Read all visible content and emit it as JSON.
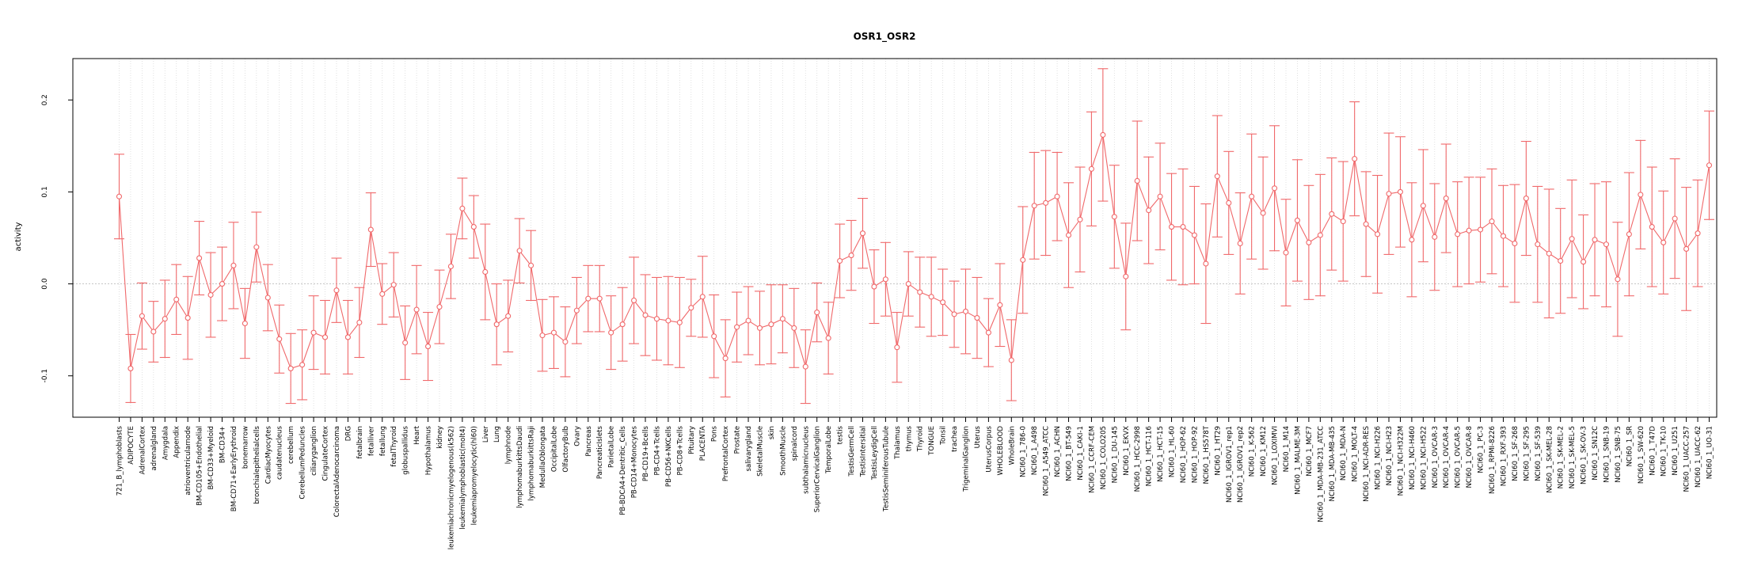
{
  "chart_data": {
    "type": "line",
    "title": "OSR1_OSR2",
    "xlabel": "",
    "ylabel": "activity",
    "ylim": [
      -0.145,
      0.245
    ],
    "yticks": [
      -0.1,
      0.0,
      0.1,
      0.2
    ],
    "ytick_labels": [
      "-0.1",
      "0.0",
      "0.1",
      "0.2"
    ],
    "grid": "vertical dotted per category; horizontal dotted reference at 0",
    "colors": {
      "series": "#f0686a",
      "grid": "#d9d9d9",
      "axis": "#000000"
    },
    "categories": [
      "721_B_lymphoblasts",
      "ADIPOCYTE",
      "AdrenalCortex",
      "adrenalgland",
      "Amygdala",
      "Appendix",
      "atrioventricularnode",
      "BM-CD105+Endothelial",
      "BM-CD33+Myeloid",
      "BM-CD34+",
      "BM-CD71+EarlyErythroid",
      "bonemarrow",
      "bronchialepithelialcells",
      "CardiacMyocytes",
      "caudatenucleus",
      "cerebellum",
      "CerebellumPeduncles",
      "ciliaryganglion",
      "CingulateCortex",
      "ColorectalAdenocarcinoma",
      "DRG",
      "fetalbrain",
      "fetalliver",
      "fetallung",
      "fetalThyroid",
      "globuspallidus",
      "Heart",
      "Hypothalamus",
      "kidney",
      "leukemiachronicmyelogenous(k562)",
      "leukemialymphoblastic(molt4)",
      "leukemiapromyelocytic(hl60)",
      "Liver",
      "Lung",
      "lymphnode",
      "lymphomaburkittsDaudi",
      "lymphomaburkittsRaji",
      "MedullaOblongata",
      "OccipitalLobe",
      "OlfactoryBulb",
      "Ovary",
      "Pancreas",
      "PancreaticIslets",
      "ParietalLobe",
      "PB-BDCA4+Dentritic_Cells",
      "PB-CD14+Monocytes",
      "PB-CD19+Bcells",
      "PB-CD4+Tcells",
      "PB-CD56+NKCells",
      "PB-CD8+Tcells",
      "Pituitary",
      "PLACENTA",
      "Pons",
      "PrefrontalCortex",
      "Prostate",
      "salivarygland",
      "SkeletalMuscle",
      "skin",
      "SmoothMuscle",
      "spinalcord",
      "subthalamicnucleus",
      "SuperiorCervicalGanglion",
      "TemporalLobe",
      "testis",
      "TestisGermCell",
      "TestisIntersitial",
      "TestisLeydigCell",
      "TestisSeminiferousTubule",
      "Thalamus",
      "thymus",
      "Thyroid",
      "TONGUE",
      "Tonsil",
      "trachea",
      "TrigeminalGanglion",
      "Uterus",
      "UterusCorpus",
      "WHOLEBLOOD",
      "WholeBrain",
      "NCI60_1_786-0",
      "NCI60_1_A498",
      "NCI60_1_A549_ATCC",
      "NCI60_1_ACHN",
      "NCI60_1_BT-549",
      "NCI60_1_CAKI-1",
      "NCI60_1_CCRF-CEM",
      "NCI60_1_COLO205",
      "NCI60_1_DU-145",
      "NCI60_1_EKVX",
      "NCI60_1_HCC-2998",
      "NCI60_1_HCT-116",
      "NCI60_1_HCT-15",
      "NCI60_1_HL-60",
      "NCI60_1_HOP-62",
      "NCI60_1_HOP-92",
      "NCI60_1_HS578T",
      "NCI60_1_HT29",
      "NCI60_1_IGROV1_rep1",
      "NCI60_1_IGROV1_rep2",
      "NCI60_1_K-562",
      "NCI60_1_KM12",
      "NCI60_1_LOXIMVI",
      "NCI60_1_M14",
      "NCI60_1_MALME-3M",
      "NCI60_1_MCF7",
      "NCI60_1_MDA-MB-231_ATCC",
      "NCI60_1_MDA-MB-435",
      "NCI60_1_MDA-N",
      "NCI60_1_MOLT-4",
      "NCI60_1_NCI-ADR-RES",
      "NCI60_1_NCI-H226",
      "NCI60_1_NCI-H23",
      "NCI60_1_NCI-H322M",
      "NCI60_1_NCI-H460",
      "NCI60_1_NCI-H522",
      "NCI60_1_OVCAR-3",
      "NCI60_1_OVCAR-4",
      "NCI60_1_OVCAR-5",
      "NCI60_1_OVCAR-8",
      "NCI60_1_PC-3",
      "NCI60_1_RPMI-8226",
      "NCI60_1_RXF-393",
      "NCI60_1_SF-268",
      "NCI60_1_SF-295",
      "NCI60_1_SF-539",
      "NCI60_1_SK-MEL-28",
      "NCI60_1_SK-MEL-2",
      "NCI60_1_SK-MEL-5",
      "NCI60_1_SK-OV-3",
      "NCI60_1_SN12C",
      "NCI60_1_SNB-19",
      "NCI60_1_SNB-75",
      "NCI60_1_SR",
      "NCI60_1_SW-620",
      "NCI60_1_T47D",
      "NCI60_1_TK-10",
      "NCI60_1_U251",
      "NCI60_1_UACC-257",
      "NCI60_1_UACC-62",
      "NCI60_1_UO-31"
    ],
    "series": [
      {
        "values": [
          0.095,
          -0.092,
          -0.035,
          -0.052,
          -0.038,
          -0.017,
          -0.037,
          0.028,
          -0.012,
          0.0,
          0.02,
          -0.043,
          0.04,
          -0.015,
          -0.06,
          -0.092,
          -0.088,
          -0.053,
          -0.058,
          -0.007,
          -0.058,
          -0.042,
          0.059,
          -0.011,
          -0.001,
          -0.064,
          -0.028,
          -0.068,
          -0.025,
          0.019,
          0.082,
          0.062,
          0.013,
          -0.044,
          -0.035,
          0.036,
          0.02,
          -0.056,
          -0.053,
          -0.063,
          -0.029,
          -0.016,
          -0.016,
          -0.053,
          -0.044,
          -0.018,
          -0.034,
          -0.038,
          -0.04,
          -0.042,
          -0.026,
          -0.014,
          -0.057,
          -0.081,
          -0.047,
          -0.04,
          -0.048,
          -0.044,
          -0.038,
          -0.048,
          -0.09,
          -0.031,
          -0.059,
          0.025,
          0.031,
          0.055,
          -0.003,
          0.005,
          -0.069,
          0.0,
          -0.009,
          -0.014,
          -0.02,
          -0.033,
          -0.03,
          -0.037,
          -0.053,
          -0.023,
          -0.083,
          0.026,
          0.085,
          0.088,
          0.095,
          0.053,
          0.07,
          0.125,
          0.162,
          0.073,
          0.008,
          0.112,
          0.08,
          0.095,
          0.062,
          0.062,
          0.053,
          0.022,
          0.117,
          0.088,
          0.044,
          0.095,
          0.077,
          0.104,
          0.034,
          0.069,
          0.045,
          0.053,
          0.076,
          0.068,
          0.136,
          0.065,
          0.054,
          0.098,
          0.1,
          0.048,
          0.085,
          0.051,
          0.093,
          0.054,
          0.058,
          0.059,
          0.068,
          0.052,
          0.044,
          0.093,
          0.043,
          0.033,
          0.025,
          0.049,
          0.024,
          0.048,
          0.043,
          0.005,
          0.054,
          0.097,
          0.062,
          0.045,
          0.071,
          0.038,
          0.055,
          0.129
        ],
        "errors": [
          0.046,
          0.037,
          0.036,
          0.033,
          0.042,
          0.038,
          0.045,
          0.04,
          0.046,
          0.04,
          0.047,
          0.038,
          0.038,
          0.036,
          0.037,
          0.038,
          0.038,
          0.04,
          0.04,
          0.035,
          0.04,
          0.038,
          0.04,
          0.033,
          0.035,
          0.04,
          0.048,
          0.037,
          0.04,
          0.035,
          0.033,
          0.034,
          0.052,
          0.044,
          0.039,
          0.035,
          0.038,
          0.039,
          0.039,
          0.038,
          0.036,
          0.036,
          0.036,
          0.04,
          0.04,
          0.047,
          0.044,
          0.045,
          0.048,
          0.049,
          0.031,
          0.044,
          0.045,
          0.042,
          0.038,
          0.037,
          0.04,
          0.043,
          0.037,
          0.043,
          0.04,
          0.032,
          0.039,
          0.04,
          0.038,
          0.038,
          0.04,
          0.04,
          0.038,
          0.035,
          0.038,
          0.043,
          0.036,
          0.036,
          0.046,
          0.044,
          0.037,
          0.045,
          0.044,
          0.058,
          0.058,
          0.057,
          0.048,
          0.057,
          0.057,
          0.062,
          0.072,
          0.056,
          0.058,
          0.065,
          0.058,
          0.058,
          0.058,
          0.063,
          0.053,
          0.065,
          0.066,
          0.056,
          0.055,
          0.068,
          0.061,
          0.068,
          0.058,
          0.066,
          0.062,
          0.066,
          0.061,
          0.065,
          0.062,
          0.057,
          0.064,
          0.066,
          0.06,
          0.062,
          0.061,
          0.058,
          0.059,
          0.057,
          0.058,
          0.057,
          0.057,
          0.055,
          0.064,
          0.062,
          0.063,
          0.07,
          0.057,
          0.064,
          0.051,
          0.061,
          0.068,
          0.062,
          0.067,
          0.059,
          0.065,
          0.056,
          0.065,
          0.067,
          0.058,
          0.059
        ]
      }
    ]
  }
}
